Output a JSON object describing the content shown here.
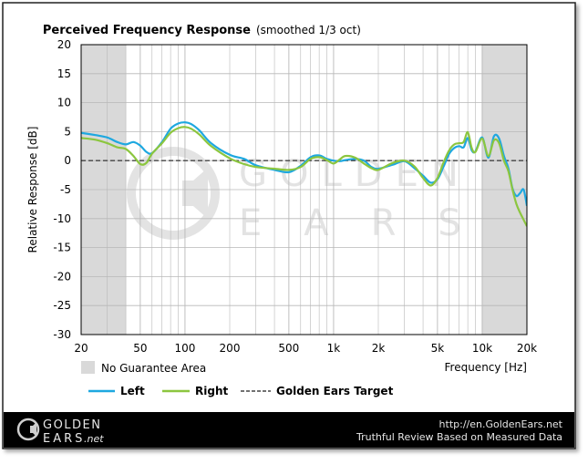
{
  "chart_data": {
    "type": "line",
    "title": "Perceived Frequency Response",
    "subtitle": "(smoothed 1/3 oct)",
    "xlabel": "Frequency [Hz]",
    "ylabel": "Relative Response [dB]",
    "xscale": "log",
    "xlim": [
      20,
      20000
    ],
    "ylim": [
      -30,
      20
    ],
    "grid": true,
    "x_ticks": [
      {
        "value": 20,
        "label": "20"
      },
      {
        "value": 50,
        "label": "50"
      },
      {
        "value": 100,
        "label": "100"
      },
      {
        "value": 200,
        "label": "200"
      },
      {
        "value": 500,
        "label": "500"
      },
      {
        "value": 1000,
        "label": "1k"
      },
      {
        "value": 2000,
        "label": "2k"
      },
      {
        "value": 5000,
        "label": "5k"
      },
      {
        "value": 10000,
        "label": "10k"
      },
      {
        "value": 20000,
        "label": "20k"
      }
    ],
    "y_ticks": [
      20,
      15,
      10,
      5,
      0,
      -5,
      -10,
      -15,
      -20,
      -25,
      -30
    ],
    "no_guarantee_ranges": [
      [
        20,
        40
      ],
      [
        10000,
        20000
      ]
    ],
    "no_guarantee_label": "No Guarantee Area",
    "series": [
      {
        "name": "Left",
        "color": "#1ea8e0",
        "x": [
          20,
          25,
          30,
          35,
          40,
          45,
          50,
          55,
          60,
          70,
          80,
          90,
          100,
          110,
          125,
          150,
          200,
          250,
          300,
          400,
          500,
          600,
          700,
          800,
          900,
          1000,
          1100,
          1200,
          1400,
          1600,
          1800,
          2000,
          2500,
          3000,
          3500,
          4000,
          4500,
          5000,
          5500,
          6000,
          6500,
          7000,
          7500,
          8000,
          8500,
          9000,
          10000,
          11000,
          12000,
          13000,
          14000,
          15000,
          16000,
          17000,
          18000,
          19000,
          20000
        ],
        "y": [
          4.8,
          4.4,
          4.0,
          3.2,
          2.8,
          3.2,
          2.6,
          1.5,
          1.3,
          3.2,
          5.5,
          6.4,
          6.6,
          6.3,
          5.2,
          3.0,
          1.0,
          0.3,
          -0.8,
          -1.6,
          -2.0,
          -0.9,
          0.6,
          0.9,
          0.3,
          0.0,
          -0.1,
          0.1,
          0.3,
          0.0,
          -1.1,
          -1.4,
          -0.7,
          -0.1,
          -1.3,
          -2.6,
          -3.8,
          -3.2,
          -1.0,
          1.2,
          2.2,
          2.5,
          2.3,
          3.9,
          1.8,
          1.6,
          4.0,
          0.5,
          4.2,
          3.8,
          0.8,
          -1.3,
          -4.8,
          -6.1,
          -5.6,
          -5.0,
          -7.8
        ]
      },
      {
        "name": "Right",
        "color": "#8cc63f",
        "x": [
          20,
          25,
          30,
          35,
          40,
          45,
          50,
          55,
          60,
          70,
          80,
          90,
          100,
          110,
          125,
          150,
          200,
          250,
          300,
          400,
          500,
          600,
          700,
          800,
          900,
          1000,
          1100,
          1200,
          1400,
          1600,
          1800,
          2000,
          2500,
          3000,
          3500,
          4000,
          4500,
          5000,
          5500,
          6000,
          6500,
          7000,
          7500,
          8000,
          8500,
          9000,
          10000,
          11000,
          12000,
          13000,
          14000,
          15000,
          16000,
          17000,
          18000,
          19000,
          20000
        ],
        "y": [
          3.9,
          3.6,
          3.0,
          2.3,
          2.0,
          0.8,
          -0.6,
          -0.4,
          1.2,
          3.0,
          4.8,
          5.6,
          5.8,
          5.5,
          4.5,
          2.5,
          0.4,
          -0.6,
          -1.1,
          -1.4,
          -1.6,
          -1.1,
          0.3,
          0.6,
          0.1,
          -0.5,
          0.2,
          0.8,
          0.5,
          -0.5,
          -1.3,
          -1.6,
          -0.4,
          0.0,
          -1.0,
          -3.0,
          -4.3,
          -3.0,
          -0.3,
          1.8,
          2.8,
          3.0,
          3.2,
          4.9,
          2.2,
          1.5,
          3.8,
          0.8,
          3.5,
          3.0,
          0.0,
          -1.8,
          -5.0,
          -7.5,
          -9.0,
          -10.2,
          -11.3
        ]
      }
    ],
    "target": {
      "name": "Golden Ears Target",
      "color": "#444444",
      "y": 0
    },
    "legend": "bottom"
  },
  "footer": {
    "logo_top": "GOLDEN",
    "logo_bottom": "EARS",
    "logo_suffix": ".net",
    "url": "http://en.GoldenEars.net",
    "tagline": "Truthful Review Based on Measured Data"
  },
  "watermark": {
    "line1": "GOLDEN",
    "line2": "EARS"
  },
  "colors": {
    "footer_bg": "#000000",
    "shade": "#d9d9d9",
    "grid": "#b8b8b8",
    "watermark": "#e3e3e3"
  }
}
